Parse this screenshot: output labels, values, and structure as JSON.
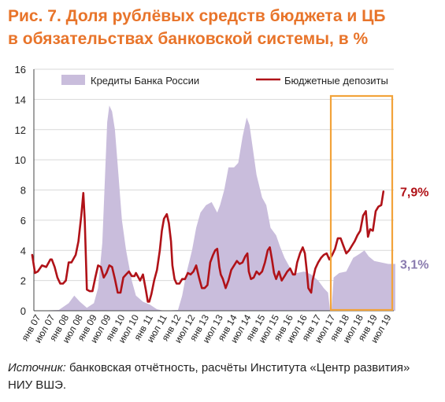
{
  "header": {
    "title_line1": "Рис. 7. Доля рублёвых средств бюджета и ЦБ",
    "title_line2": "в обязательствах банковской системы, в %"
  },
  "footer": {
    "source_label": "Источник:",
    "source_text": " банковская отчётность, расчёты Института «Центр развития» НИУ ВШЭ."
  },
  "colors": {
    "title": "#E8742A",
    "area": "#C9BDDC",
    "line": "#B01218",
    "highlight_box": "#F2A33A",
    "label_budget": "#B01218",
    "label_cb": "#8A7BAF"
  },
  "chart_data": {
    "type": "area+line",
    "ylim": [
      0,
      16
    ],
    "y_ticks": [
      "0",
      "2",
      "4",
      "6",
      "8",
      "10",
      "12",
      "14",
      "16"
    ],
    "x_tick_labels": [
      "янв 07",
      "июл 07",
      "янв 08",
      "июл 08",
      "янв 09",
      "июл 09",
      "янв 10",
      "июл 10",
      "янв 11",
      "июл 11",
      "янв 12",
      "июл 12",
      "янв 13",
      "июл 13",
      "янв 14",
      "июл 14",
      "янв 15",
      "июл 15",
      "янв 16",
      "июл 16",
      "янв 17",
      "июл 17",
      "янв 18",
      "июл 18",
      "янв 19",
      "июл 19"
    ],
    "legend": {
      "area_label": "Кредиты Банка России",
      "line_label": "Бюджетные депозиты"
    },
    "end_labels": {
      "budget": "7,9%",
      "cb": "3,1%"
    },
    "highlight_range": [
      "янв 18",
      "июл 19"
    ],
    "series": [
      {
        "name": "Кредиты Банка России",
        "type": "area",
        "points": [
          [
            0,
            0.0
          ],
          [
            1.5,
            0.05
          ],
          [
            2.2,
            0.5
          ],
          [
            2.6,
            1.0
          ],
          [
            3.0,
            0.6
          ],
          [
            3.5,
            0.2
          ],
          [
            4.0,
            0.5
          ],
          [
            4.3,
            1.5
          ],
          [
            4.6,
            4.5
          ],
          [
            4.8,
            9.0
          ],
          [
            4.95,
            12.5
          ],
          [
            5.1,
            13.6
          ],
          [
            5.3,
            13.2
          ],
          [
            5.5,
            12.0
          ],
          [
            5.75,
            9.0
          ],
          [
            6.0,
            6.0
          ],
          [
            6.3,
            4.0
          ],
          [
            6.7,
            2.0
          ],
          [
            7.0,
            1.0
          ],
          [
            7.5,
            0.6
          ],
          [
            8.0,
            0.4
          ],
          [
            8.5,
            0.1
          ],
          [
            9.0,
            0.0
          ],
          [
            10.0,
            0.05
          ],
          [
            10.3,
            1.0
          ],
          [
            10.6,
            2.5
          ],
          [
            11.0,
            4.0
          ],
          [
            11.3,
            5.5
          ],
          [
            11.6,
            6.5
          ],
          [
            12.0,
            7.0
          ],
          [
            12.4,
            7.2
          ],
          [
            12.8,
            6.5
          ],
          [
            13.0,
            7.0
          ],
          [
            13.3,
            8.0
          ],
          [
            13.6,
            9.5
          ],
          [
            14.0,
            9.5
          ],
          [
            14.3,
            9.8
          ],
          [
            14.6,
            11.5
          ],
          [
            14.9,
            12.8
          ],
          [
            15.1,
            12.3
          ],
          [
            15.3,
            11.0
          ],
          [
            15.6,
            9.0
          ],
          [
            16.0,
            7.5
          ],
          [
            16.3,
            7.0
          ],
          [
            16.6,
            5.5
          ],
          [
            17.0,
            5.0
          ],
          [
            17.3,
            4.2
          ],
          [
            17.6,
            3.5
          ],
          [
            17.9,
            3.0
          ],
          [
            18.2,
            2.5
          ],
          [
            18.5,
            2.5
          ],
          [
            19.0,
            2.6
          ],
          [
            19.5,
            2.4
          ],
          [
            20.0,
            2.0
          ],
          [
            20.4,
            1.5
          ],
          [
            20.7,
            1.2
          ],
          [
            20.85,
            0.0
          ],
          [
            20.95,
            0.0
          ],
          [
            21.1,
            2.2
          ],
          [
            21.5,
            2.5
          ],
          [
            22.0,
            2.6
          ],
          [
            22.5,
            3.5
          ],
          [
            23.0,
            3.8
          ],
          [
            23.3,
            4.0
          ],
          [
            23.6,
            3.6
          ],
          [
            24.0,
            3.3
          ],
          [
            24.5,
            3.2
          ],
          [
            25.0,
            3.1
          ],
          [
            25.5,
            3.1
          ]
        ]
      },
      {
        "name": "Бюджетные депозиты",
        "type": "line",
        "points": [
          [
            -0.4,
            3.7
          ],
          [
            -0.2,
            2.5
          ],
          [
            0.0,
            2.6
          ],
          [
            0.3,
            3.0
          ],
          [
            0.6,
            2.9
          ],
          [
            0.9,
            3.4
          ],
          [
            1.0,
            3.4
          ],
          [
            1.2,
            2.9
          ],
          [
            1.4,
            2.2
          ],
          [
            1.6,
            1.8
          ],
          [
            1.8,
            1.8
          ],
          [
            2.0,
            2.0
          ],
          [
            2.2,
            3.2
          ],
          [
            2.4,
            3.2
          ],
          [
            2.7,
            3.7
          ],
          [
            2.9,
            4.6
          ],
          [
            3.1,
            6.3
          ],
          [
            3.25,
            7.8
          ],
          [
            3.35,
            6.0
          ],
          [
            3.5,
            1.4
          ],
          [
            3.7,
            1.3
          ],
          [
            3.9,
            1.3
          ],
          [
            4.1,
            2.2
          ],
          [
            4.3,
            3.0
          ],
          [
            4.5,
            2.9
          ],
          [
            4.7,
            2.2
          ],
          [
            4.9,
            2.5
          ],
          [
            5.1,
            3.0
          ],
          [
            5.3,
            2.9
          ],
          [
            5.5,
            2.1
          ],
          [
            5.7,
            1.2
          ],
          [
            5.9,
            1.2
          ],
          [
            6.1,
            2.2
          ],
          [
            6.3,
            2.4
          ],
          [
            6.5,
            2.6
          ],
          [
            6.7,
            2.3
          ],
          [
            6.9,
            2.3
          ],
          [
            7.0,
            2.5
          ],
          [
            7.3,
            2.0
          ],
          [
            7.5,
            2.4
          ],
          [
            7.7,
            1.4
          ],
          [
            7.85,
            0.6
          ],
          [
            7.95,
            0.6
          ],
          [
            8.1,
            1.1
          ],
          [
            8.3,
            2.0
          ],
          [
            8.5,
            2.7
          ],
          [
            8.7,
            4.0
          ],
          [
            8.85,
            5.3
          ],
          [
            9.0,
            6.1
          ],
          [
            9.2,
            6.4
          ],
          [
            9.35,
            5.8
          ],
          [
            9.5,
            4.6
          ],
          [
            9.6,
            3.0
          ],
          [
            9.75,
            2.1
          ],
          [
            9.9,
            1.8
          ],
          [
            10.1,
            1.8
          ],
          [
            10.3,
            2.1
          ],
          [
            10.5,
            2.1
          ],
          [
            10.7,
            2.5
          ],
          [
            10.9,
            2.4
          ],
          [
            11.1,
            2.6
          ],
          [
            11.3,
            3.0
          ],
          [
            11.5,
            2.2
          ],
          [
            11.7,
            1.5
          ],
          [
            11.9,
            1.5
          ],
          [
            12.1,
            1.7
          ],
          [
            12.3,
            3.2
          ],
          [
            12.5,
            3.7
          ],
          [
            12.65,
            4.0
          ],
          [
            12.8,
            4.1
          ],
          [
            12.95,
            2.9
          ],
          [
            13.05,
            2.4
          ],
          [
            13.2,
            2.1
          ],
          [
            13.4,
            1.5
          ],
          [
            13.6,
            2.0
          ],
          [
            13.8,
            2.7
          ],
          [
            14.0,
            3.0
          ],
          [
            14.2,
            3.3
          ],
          [
            14.4,
            3.1
          ],
          [
            14.6,
            3.2
          ],
          [
            14.8,
            3.6
          ],
          [
            14.95,
            3.8
          ],
          [
            15.05,
            2.6
          ],
          [
            15.2,
            2.1
          ],
          [
            15.4,
            2.2
          ],
          [
            15.6,
            2.6
          ],
          [
            15.8,
            2.4
          ],
          [
            16.0,
            2.6
          ],
          [
            16.2,
            3.2
          ],
          [
            16.4,
            4.0
          ],
          [
            16.55,
            4.2
          ],
          [
            16.7,
            3.4
          ],
          [
            16.85,
            2.5
          ],
          [
            17.0,
            2.1
          ],
          [
            17.2,
            2.6
          ],
          [
            17.4,
            2.0
          ],
          [
            17.6,
            2.3
          ],
          [
            17.8,
            2.6
          ],
          [
            18.0,
            2.8
          ],
          [
            18.2,
            2.4
          ],
          [
            18.35,
            2.4
          ],
          [
            18.5,
            3.2
          ],
          [
            18.7,
            3.8
          ],
          [
            18.9,
            4.2
          ],
          [
            19.05,
            3.8
          ],
          [
            19.2,
            2.5
          ],
          [
            19.3,
            1.5
          ],
          [
            19.5,
            1.2
          ],
          [
            19.6,
            2.0
          ],
          [
            19.8,
            2.8
          ],
          [
            20.0,
            3.2
          ],
          [
            20.2,
            3.5
          ],
          [
            20.4,
            3.7
          ],
          [
            20.6,
            3.8
          ],
          [
            20.8,
            3.4
          ],
          [
            21.0,
            3.7
          ],
          [
            21.2,
            4.1
          ],
          [
            21.4,
            4.8
          ],
          [
            21.6,
            4.8
          ],
          [
            21.8,
            4.3
          ],
          [
            22.0,
            3.8
          ],
          [
            22.2,
            4.0
          ],
          [
            22.4,
            4.3
          ],
          [
            22.6,
            4.6
          ],
          [
            22.8,
            5.0
          ],
          [
            23.0,
            5.3
          ],
          [
            23.2,
            6.3
          ],
          [
            23.4,
            6.6
          ],
          [
            23.55,
            4.9
          ],
          [
            23.7,
            5.4
          ],
          [
            23.9,
            5.3
          ],
          [
            24.1,
            6.6
          ],
          [
            24.3,
            6.9
          ],
          [
            24.5,
            7.0
          ],
          [
            24.65,
            7.9
          ]
        ]
      }
    ]
  }
}
